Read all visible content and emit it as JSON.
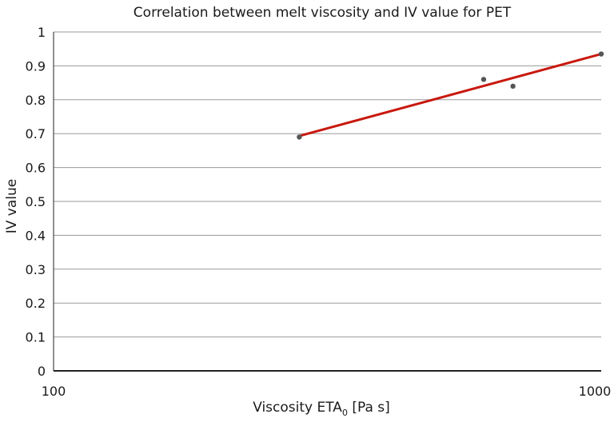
{
  "chart_data": {
    "type": "scatter",
    "title": "Correlation between melt viscosity and IV value for PET",
    "xlabel_main": "Viscosity ETA",
    "xlabel_sub": "0",
    "xlabel_unit": " [Pa s]",
    "ylabel": "IV value",
    "x_scale": "log",
    "xlim": [
      100,
      1000
    ],
    "ylim": [
      0,
      1
    ],
    "x_ticks": [
      100,
      1000
    ],
    "x_tick_labels": [
      "100",
      "1000"
    ],
    "y_ticks": [
      0,
      0.1,
      0.2,
      0.3,
      0.4,
      0.5,
      0.6,
      0.7,
      0.8,
      0.9,
      1
    ],
    "y_tick_labels": [
      "0",
      "0.1",
      "0.2",
      "0.3",
      "0.4",
      "0.5",
      "0.6",
      "0.7",
      "0.8",
      "0.9",
      "1"
    ],
    "grid": "horizontal",
    "series": [
      {
        "type": "scatter",
        "color": "#555555",
        "points": [
          {
            "x": 281,
            "y": 0.69
          },
          {
            "x": 610,
            "y": 0.86
          },
          {
            "x": 690,
            "y": 0.84
          },
          {
            "x": 1000,
            "y": 0.935
          }
        ]
      },
      {
        "type": "trendline",
        "color": "#c8190f",
        "points": [
          {
            "x": 281,
            "y": 0.693
          },
          {
            "x": 1000,
            "y": 0.935
          }
        ]
      }
    ]
  }
}
